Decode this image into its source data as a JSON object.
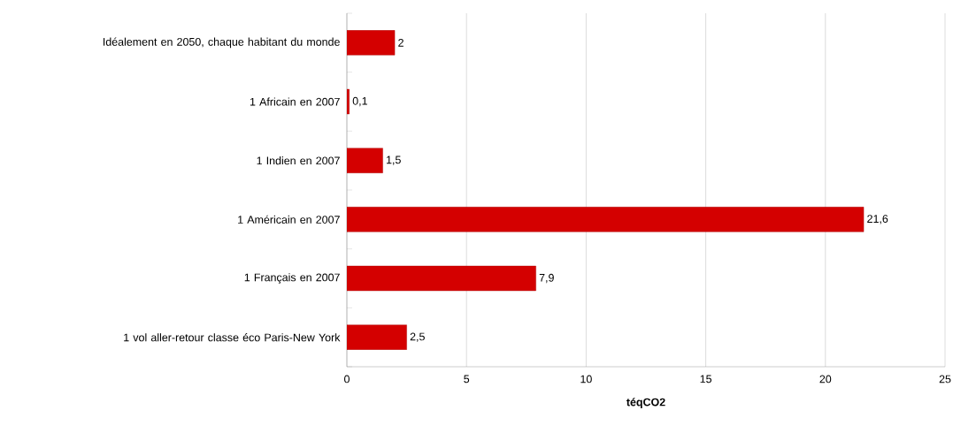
{
  "chart_data": {
    "type": "bar",
    "orientation": "horizontal",
    "categories": [
      "Idéalement en 2050, chaque habitant du monde",
      "1 Africain en 2007",
      "1 Indien en 2007",
      "1 Américain en 2007",
      "1 Français en 2007",
      "1 vol aller-retour classe éco Paris-New York"
    ],
    "values": [
      2,
      0.1,
      1.5,
      21.6,
      7.9,
      2.5
    ],
    "value_labels": [
      "2",
      "0,1",
      "1,5",
      "21,6",
      "7,9",
      "2,5"
    ],
    "color": "#d40000",
    "xlabel": "téqCO2",
    "xlim": [
      0,
      25
    ],
    "xticks": [
      0,
      5,
      10,
      15,
      20,
      25
    ],
    "grid": "x"
  }
}
